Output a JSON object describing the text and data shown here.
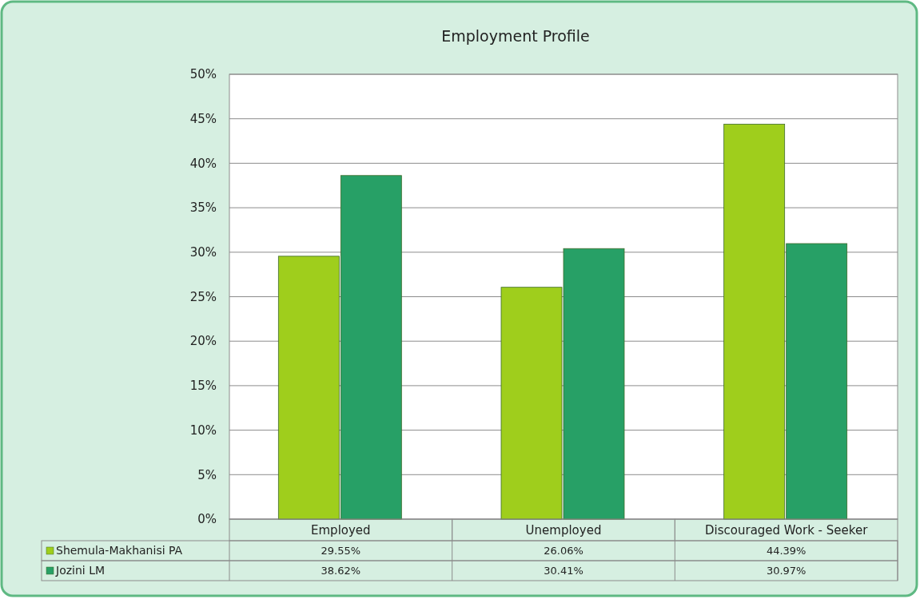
{
  "chart_data": {
    "type": "bar",
    "title": "Employment Profile",
    "categories": [
      "Employed",
      "Unemployed",
      "Discouraged Work - Seeker"
    ],
    "series": [
      {
        "name": "Shemula-Makhanisi PA",
        "color": "#9fce1c",
        "values": [
          29.55,
          26.06,
          44.39
        ],
        "value_labels": [
          "29.55%",
          "26.06%",
          "44.39%"
        ]
      },
      {
        "name": "Jozini LM",
        "color": "#27a066",
        "values": [
          38.62,
          30.41,
          30.97
        ],
        "value_labels": [
          "38.62%",
          "30.41%",
          "30.97%"
        ]
      }
    ],
    "ylim": [
      0,
      50
    ],
    "yticks": [
      {
        "value": 0,
        "label": "0%"
      },
      {
        "value": 5,
        "label": "5%"
      },
      {
        "value": 10,
        "label": "10%"
      },
      {
        "value": 15,
        "label": "15%"
      },
      {
        "value": 20,
        "label": "20%"
      },
      {
        "value": 25,
        "label": "25%"
      },
      {
        "value": 30,
        "label": "30%"
      },
      {
        "value": 35,
        "label": "35%"
      },
      {
        "value": 40,
        "label": "40%"
      },
      {
        "value": 45,
        "label": "45%"
      },
      {
        "value": 50,
        "label": "50%"
      }
    ],
    "grid": "y",
    "legend": "bottom"
  }
}
